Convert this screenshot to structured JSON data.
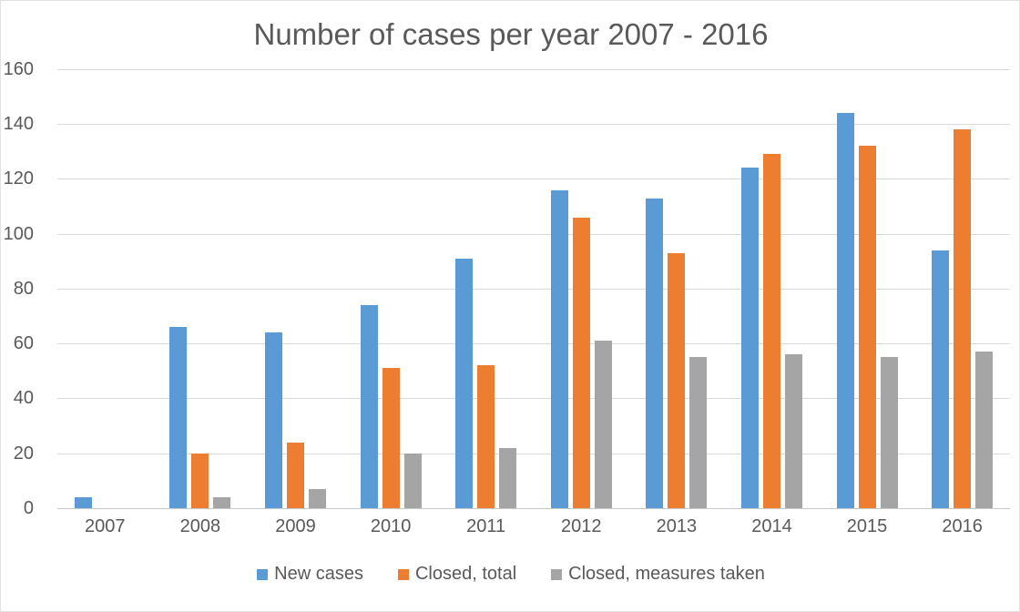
{
  "title": "Number of cases per year 2007 - 2016",
  "colors": {
    "new_cases": "#5b9bd5",
    "closed_total": "#ed7d31",
    "closed_measures_taken": "#a5a5a5",
    "gridline": "#d9d9d9",
    "text": "#595959",
    "background": "#ffffff"
  },
  "chart_data": {
    "type": "bar",
    "title": "Number of cases per year 2007 - 2016",
    "categories": [
      "2007",
      "2008",
      "2009",
      "2010",
      "2011",
      "2012",
      "2013",
      "2014",
      "2015",
      "2016"
    ],
    "series": [
      {
        "name": "New cases",
        "color": "#5b9bd5",
        "values": [
          4,
          66,
          64,
          74,
          91,
          116,
          113,
          124,
          144,
          94
        ]
      },
      {
        "name": "Closed, total",
        "color": "#ed7d31",
        "values": [
          0,
          20,
          24,
          51,
          52,
          106,
          93,
          129,
          132,
          138
        ]
      },
      {
        "name": "Closed, measures taken",
        "color": "#a5a5a5",
        "values": [
          0,
          4,
          7,
          20,
          22,
          61,
          55,
          56,
          55,
          57
        ]
      }
    ],
    "xlabel": "",
    "ylabel": "",
    "ylim": [
      0,
      160
    ],
    "yticks": [
      0,
      20,
      40,
      60,
      80,
      100,
      120,
      140,
      160
    ],
    "grid": true,
    "legend_position": "bottom-center"
  }
}
